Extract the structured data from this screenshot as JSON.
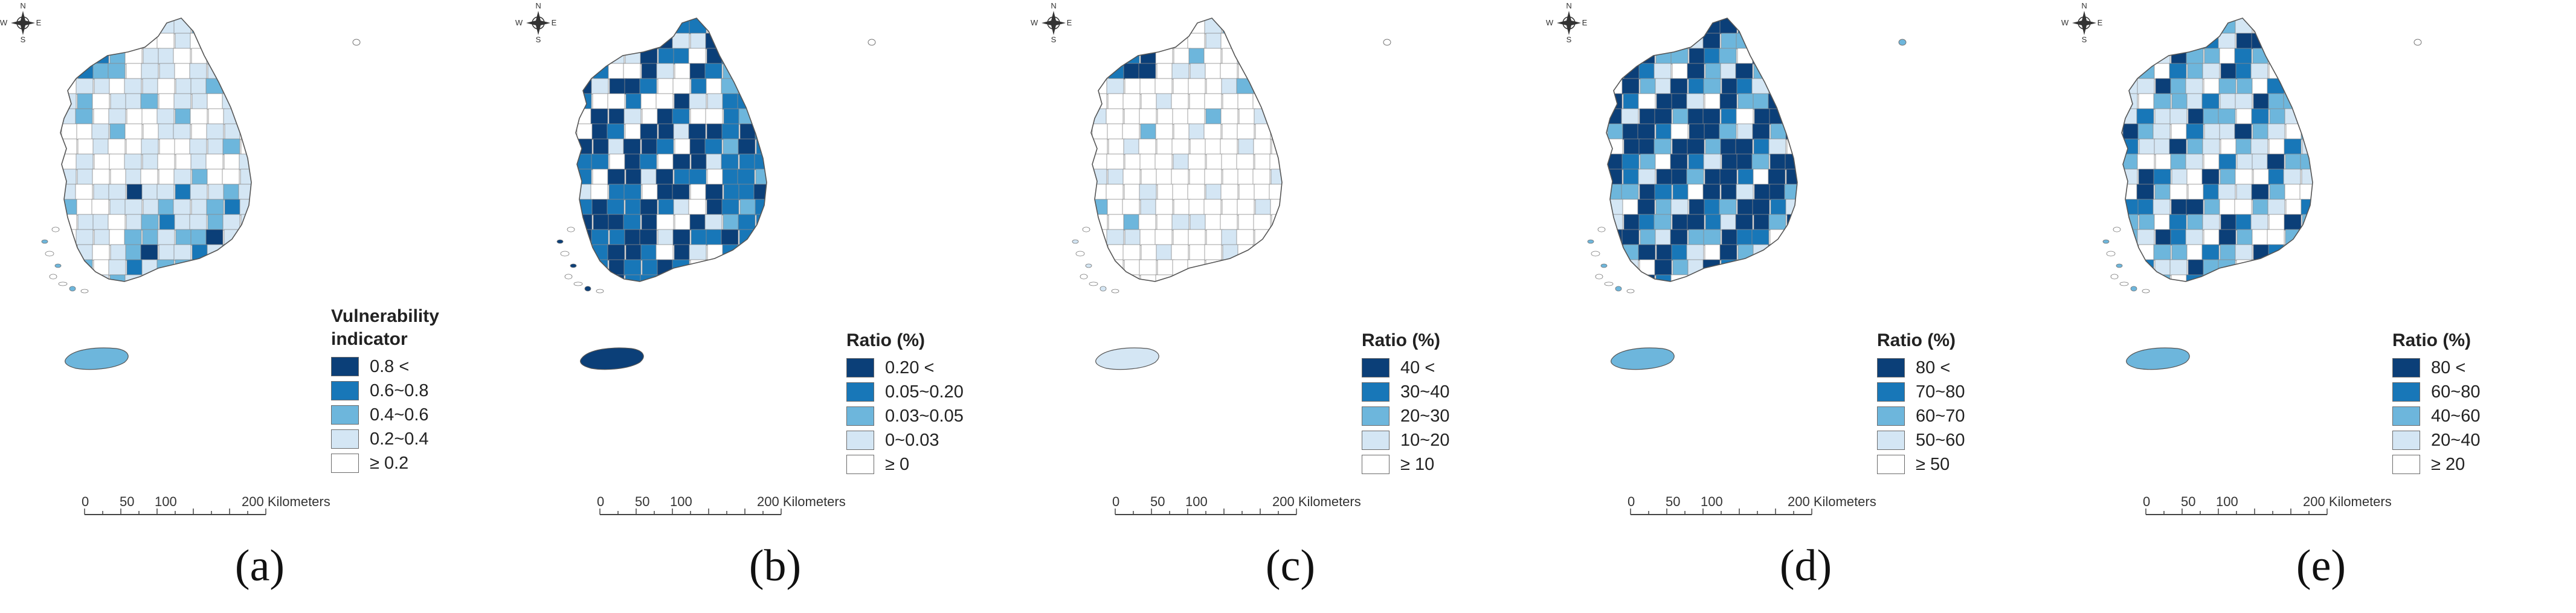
{
  "colors": {
    "c0": "#ffffff",
    "c1": "#d4e6f4",
    "c2": "#6db6dc",
    "c3": "#1877b8",
    "c4": "#0b3f78",
    "outline": "#8a8a8a"
  },
  "compass_icon": "compass-rose-icon",
  "compass_letters": {
    "n": "N",
    "s": "S",
    "e": "E",
    "w": "W"
  },
  "scale_bar": {
    "v0": "0",
    "v50": "50",
    "v100": "100",
    "v200": "200 Kilometers"
  },
  "panels": [
    {
      "caption": "(a)",
      "legend_title_line1": "Vulnerability",
      "legend_title_line2": "indicator",
      "legend": [
        "0.8 <",
        "0.6~0.8",
        "0.4~0.6",
        "0.2~0.4",
        "≥ 0.2"
      ]
    },
    {
      "caption": "(b)",
      "legend_title_line1": "Ratio (%)",
      "legend": [
        "0.20 <",
        "0.05~0.20",
        "0.03~0.05",
        "0~0.03",
        "≥ 0"
      ]
    },
    {
      "caption": "(c)",
      "legend_title_line1": "Ratio (%)",
      "legend": [
        "40 <",
        "30~40",
        "20~30",
        "10~20",
        "≥ 10"
      ]
    },
    {
      "caption": "(d)",
      "legend_title_line1": "Ratio (%)",
      "legend": [
        "80 <",
        "70~80",
        "60~70",
        "50~60",
        "≥ 50"
      ]
    },
    {
      "caption": "(e)",
      "legend_title_line1": "Ratio (%)",
      "legend": [
        "80 <",
        "60~80",
        "40~60",
        "20~40",
        "≥ 20"
      ]
    }
  ]
}
